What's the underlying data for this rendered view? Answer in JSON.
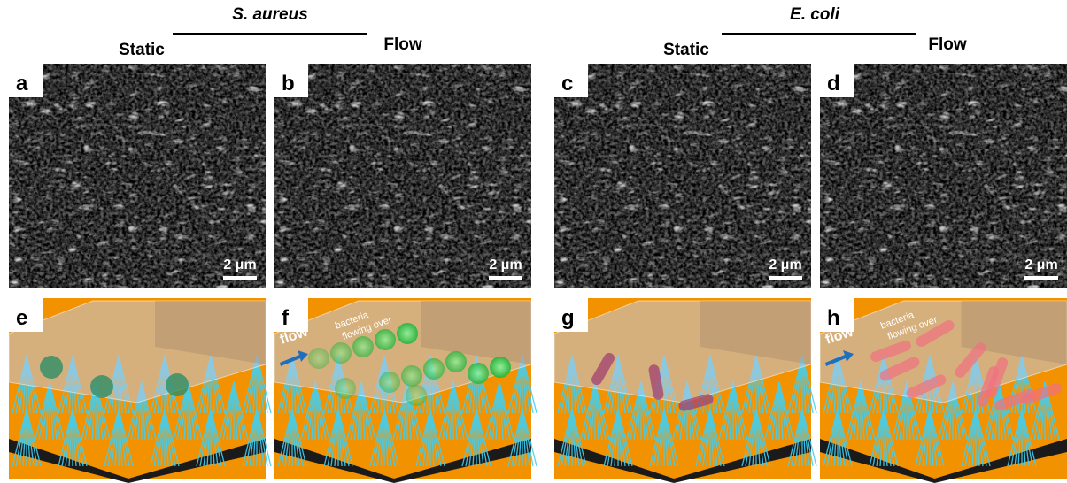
{
  "groups": [
    {
      "title": "S. aureus",
      "columns": [
        "Static",
        "Flow"
      ]
    },
    {
      "title": "E. coli",
      "columns": [
        "Static",
        "Flow"
      ]
    }
  ],
  "panels": [
    {
      "label": "a",
      "scale_bar": "2 μm"
    },
    {
      "label": "b",
      "scale_bar": "2 μm"
    },
    {
      "label": "c",
      "scale_bar": "2 μm"
    },
    {
      "label": "d",
      "scale_bar": "2 μm"
    },
    {
      "label": "e"
    },
    {
      "label": "f",
      "flow": "flow",
      "annotation": [
        "bacteria",
        "flowing over"
      ]
    },
    {
      "label": "g"
    },
    {
      "label": "h",
      "flow": "flow",
      "annotation": [
        "bacteria",
        "flowing over"
      ]
    }
  ]
}
